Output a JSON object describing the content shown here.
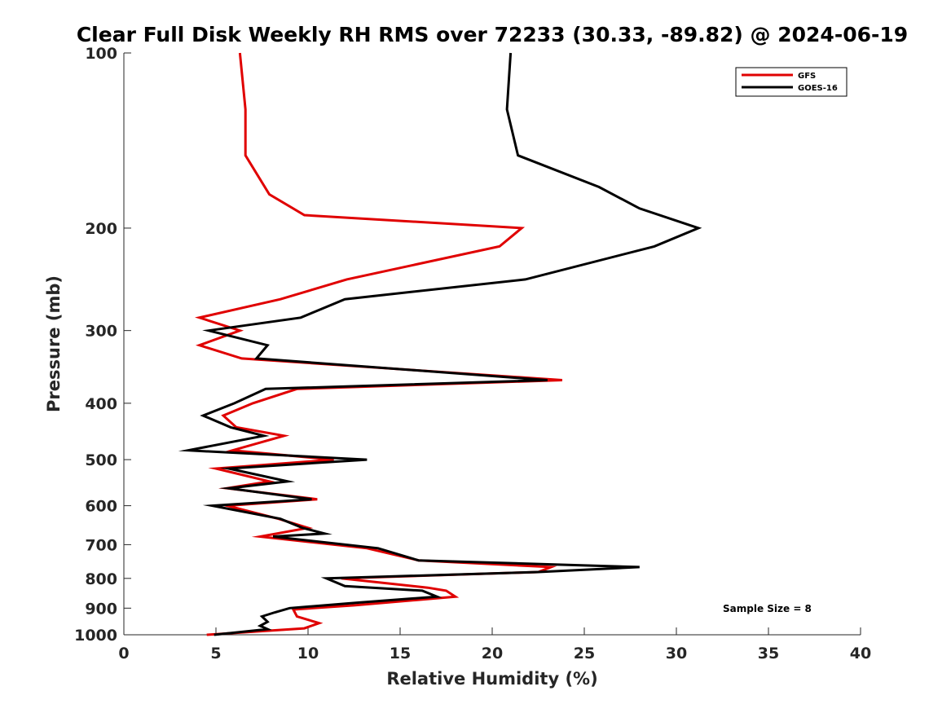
{
  "chart_data": {
    "type": "line",
    "title": "Clear Full Disk Weekly RH RMS over 72233 (30.33, -89.82) @ 2024-06-19",
    "xlabel": "Relative Humidity (%)",
    "ylabel": "Pressure (mb)",
    "xlim": [
      0,
      40
    ],
    "ylim": [
      100,
      1000
    ],
    "y_scale": "log",
    "y_direction": "reversed",
    "x_ticks": [
      0,
      5,
      10,
      15,
      20,
      25,
      30,
      35,
      40
    ],
    "y_ticks": [
      100,
      200,
      300,
      400,
      500,
      600,
      700,
      800,
      900,
      1000
    ],
    "grid": false,
    "legend": "top-right",
    "annotation": "Sample Size = 8",
    "series": [
      {
        "name": "GFS",
        "color": "#e00000",
        "points": [
          [
            6.3,
            100
          ],
          [
            6.6,
            125
          ],
          [
            6.6,
            150
          ],
          [
            7.9,
            175
          ],
          [
            9.8,
            190
          ],
          [
            21.6,
            200
          ],
          [
            20.4,
            215
          ],
          [
            12.1,
            245
          ],
          [
            8.5,
            265
          ],
          [
            4.1,
            285
          ],
          [
            6.3,
            300
          ],
          [
            4.1,
            318
          ],
          [
            6.4,
            335
          ],
          [
            23.8,
            365
          ],
          [
            9.4,
            378
          ],
          [
            7.0,
            400
          ],
          [
            5.4,
            420
          ],
          [
            6.1,
            440
          ],
          [
            8.7,
            455
          ],
          [
            5.9,
            482
          ],
          [
            11.4,
            500
          ],
          [
            5.0,
            518
          ],
          [
            7.9,
            545
          ],
          [
            5.6,
            560
          ],
          [
            10.5,
            585
          ],
          [
            5.6,
            600
          ],
          [
            8.4,
            632
          ],
          [
            10.0,
            655
          ],
          [
            7.4,
            678
          ],
          [
            13.2,
            710
          ],
          [
            16.0,
            745
          ],
          [
            23.2,
            765
          ],
          [
            22.5,
            780
          ],
          [
            11.8,
            800
          ],
          [
            16.5,
            830
          ],
          [
            17.5,
            840
          ],
          [
            18.0,
            860
          ],
          [
            12.5,
            890
          ],
          [
            9.2,
            905
          ],
          [
            9.4,
            930
          ],
          [
            10.6,
            955
          ],
          [
            9.8,
            975
          ],
          [
            4.5,
            1000
          ]
        ]
      },
      {
        "name": "GOES-16",
        "color": "#000000",
        "points": [
          [
            21.0,
            100
          ],
          [
            20.8,
            125
          ],
          [
            21.4,
            150
          ],
          [
            25.8,
            170
          ],
          [
            28.0,
            185
          ],
          [
            31.2,
            200
          ],
          [
            28.8,
            215
          ],
          [
            21.8,
            245
          ],
          [
            12.0,
            265
          ],
          [
            9.6,
            285
          ],
          [
            4.6,
            300
          ],
          [
            7.8,
            318
          ],
          [
            7.2,
            335
          ],
          [
            23.0,
            365
          ],
          [
            7.7,
            378
          ],
          [
            6.0,
            400
          ],
          [
            4.3,
            420
          ],
          [
            5.8,
            440
          ],
          [
            7.6,
            455
          ],
          [
            3.5,
            482
          ],
          [
            13.2,
            500
          ],
          [
            5.7,
            518
          ],
          [
            8.9,
            545
          ],
          [
            5.7,
            560
          ],
          [
            10.2,
            585
          ],
          [
            4.8,
            600
          ],
          [
            8.5,
            632
          ],
          [
            9.7,
            655
          ],
          [
            10.9,
            670
          ],
          [
            8.1,
            678
          ],
          [
            13.8,
            710
          ],
          [
            16.0,
            745
          ],
          [
            28.0,
            765
          ],
          [
            22.5,
            780
          ],
          [
            11.0,
            800
          ],
          [
            12.0,
            825
          ],
          [
            16.2,
            840
          ],
          [
            17.0,
            860
          ],
          [
            12.8,
            880
          ],
          [
            9.0,
            900
          ],
          [
            8.2,
            915
          ],
          [
            7.5,
            930
          ],
          [
            7.8,
            950
          ],
          [
            7.4,
            965
          ],
          [
            7.8,
            978
          ],
          [
            4.9,
            1000
          ]
        ]
      }
    ]
  }
}
